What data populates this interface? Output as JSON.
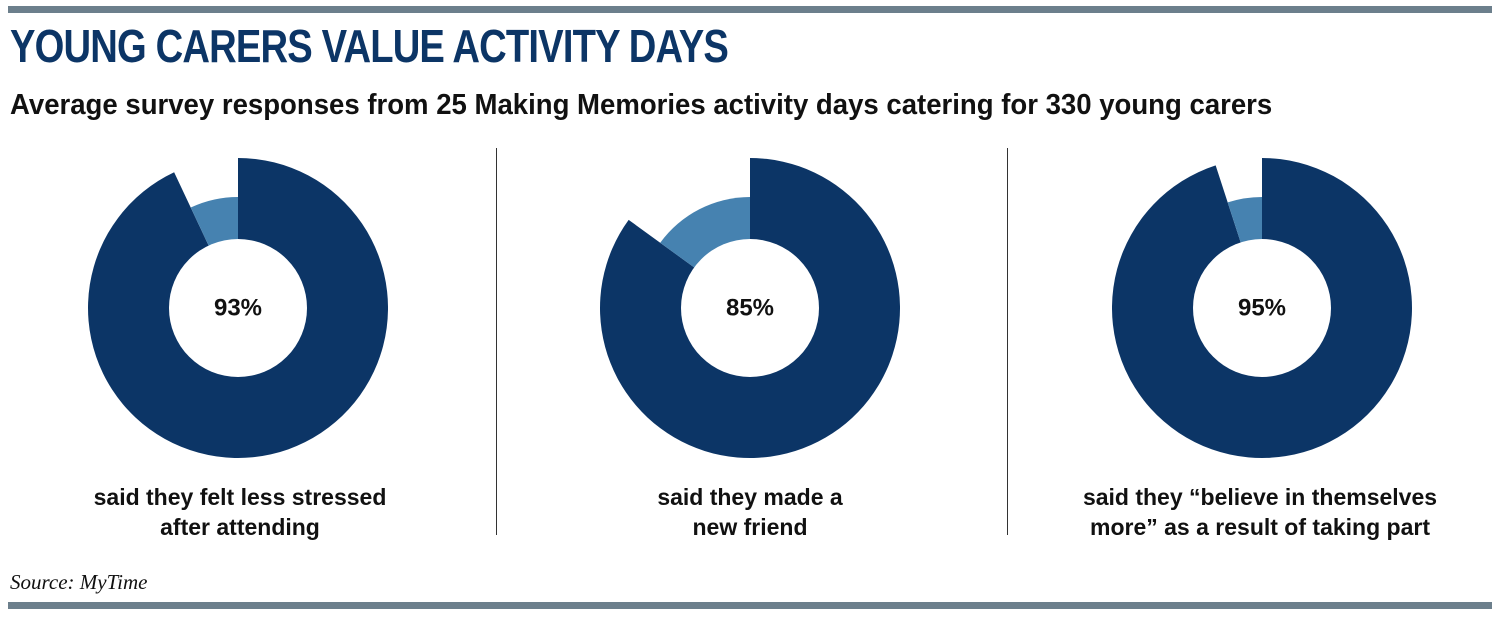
{
  "header": {
    "title": "YOUNG CARERS VALUE ACTIVITY DAYS",
    "subtitle": "Average survey responses from 25 Making Memories activity days catering for 330 young carers"
  },
  "footer": {
    "source": "Source: MyTime"
  },
  "colors": {
    "primary": "#0c3566",
    "secondary": "#4682b0",
    "rule": "#6c7f8c"
  },
  "chart_data": [
    {
      "type": "pie",
      "donut": true,
      "value": 93,
      "label": "93%",
      "caption_lines": [
        "said they felt less stressed",
        "after attending"
      ]
    },
    {
      "type": "pie",
      "donut": true,
      "value": 85,
      "label": "85%",
      "caption_lines": [
        "said they made a",
        "new friend"
      ]
    },
    {
      "type": "pie",
      "donut": true,
      "value": 95,
      "label": "95%",
      "caption_lines": [
        "said they “believe in themselves",
        "more” as a result of taking part"
      ]
    }
  ]
}
